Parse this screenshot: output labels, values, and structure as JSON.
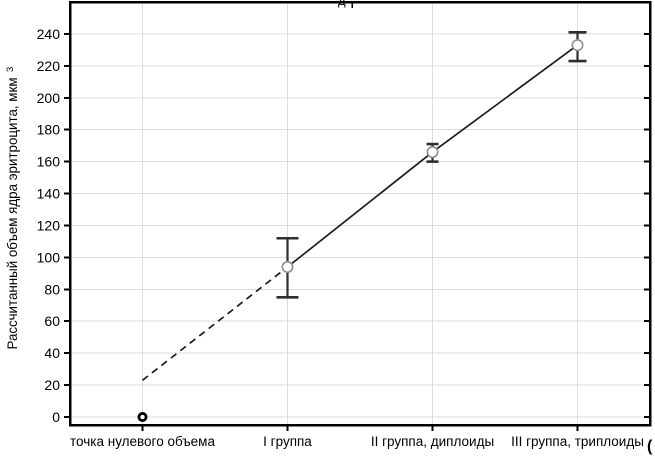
{
  "chart_data": {
    "type": "line",
    "subtype": "category-means-with-error-bars",
    "title": "",
    "clipped_title_fragment": "д",
    "clipped_corner_fragment": "(",
    "ylabel": "Рассчитанный объем ядра эритроцита, мкм",
    "ylabel_superscript": "3",
    "xlabel": "",
    "categories": [
      "точка нулевого объема",
      "I группа",
      "II группа, диплоиды",
      "III группа, триплоиды"
    ],
    "y_ticks": [
      0,
      20,
      40,
      60,
      80,
      100,
      120,
      140,
      160,
      180,
      200,
      220,
      240
    ],
    "ylim": [
      -5,
      260
    ],
    "grid": true,
    "legend": "none",
    "zero_point": {
      "category_index": 0,
      "value": 0
    },
    "groups": [
      {
        "category_index": 1,
        "value": 94,
        "error_low": 75,
        "error_high": 112,
        "cap_halfwidth": 11
      },
      {
        "category_index": 2,
        "value": 166,
        "error_low": 160,
        "error_high": 171,
        "cap_halfwidth": 6
      },
      {
        "category_index": 3,
        "value": 233,
        "error_low": 223,
        "error_high": 241,
        "cap_halfwidth": 9
      }
    ],
    "dashed_segment": [
      {
        "category_index": 0,
        "value": 23
      },
      {
        "category_index": 1,
        "value": 94
      }
    ],
    "colors": {
      "axis": "#000000",
      "grid": "#dcdcdc",
      "line": "#1c1c1c",
      "error_bar": "#2e2e2e",
      "marker_stroke": "#8f8f8f",
      "marker_fill": "#ffffff",
      "zero_marker": "#000000",
      "fragment_gray": "#b5b5b5"
    }
  }
}
